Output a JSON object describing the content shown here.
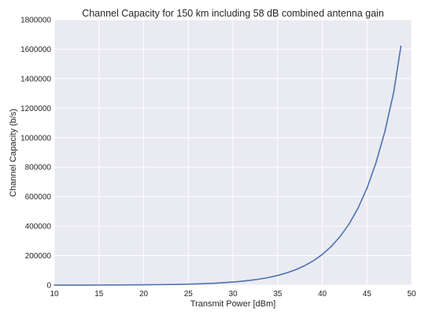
{
  "chart_data": {
    "type": "line",
    "title": "Channel Capacity for 150 km including 58 dB combined antenna gain",
    "xlabel": "Transmit Power [dBm]",
    "ylabel": "Channel Capacity (b/s)",
    "xlim": [
      10,
      50
    ],
    "ylim": [
      0,
      1800000
    ],
    "xticks": [
      10,
      15,
      20,
      25,
      30,
      35,
      40,
      45,
      50
    ],
    "yticks": [
      0,
      200000,
      400000,
      600000,
      800000,
      1000000,
      1200000,
      1400000,
      1600000,
      1800000
    ],
    "grid": true,
    "style": "seaborn-darkgrid",
    "colors": {
      "plot_background": "#eaeaf2",
      "grid": "#ffffff",
      "line": "#4c72b0",
      "text": "#262626"
    },
    "series": [
      {
        "x": [
          10,
          12,
          14,
          16,
          18,
          20,
          22,
          24,
          26,
          28,
          30,
          31,
          32,
          33,
          34,
          35,
          36,
          37,
          38,
          39,
          40,
          41,
          42,
          43,
          44,
          45,
          46,
          47,
          48,
          48.8
        ],
        "y": [
          210,
          330,
          520,
          830,
          1300,
          2100,
          3300,
          5200,
          8300,
          13100,
          20800,
          26200,
          32900,
          41500,
          52200,
          65700,
          82700,
          104000,
          131000,
          165000,
          208000,
          262000,
          330000,
          415000,
          522000,
          657000,
          828000,
          1040000,
          1310000,
          1620000
        ]
      }
    ]
  }
}
